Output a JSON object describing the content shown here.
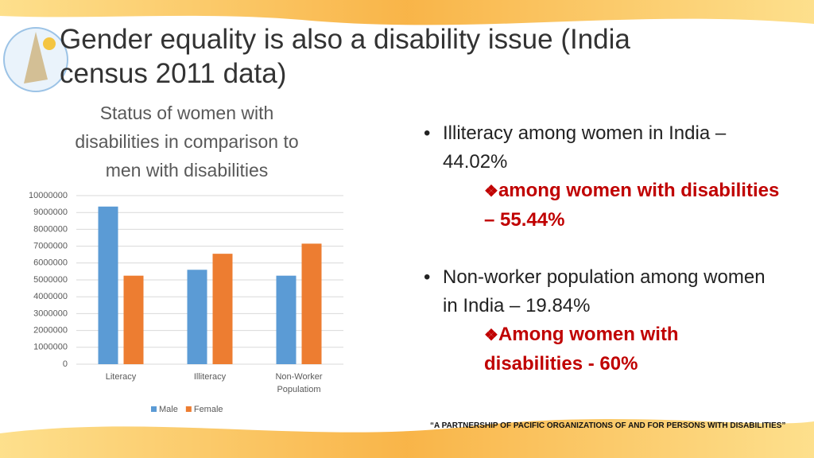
{
  "title": "Gender equality is also a disability issue (India census 2011 data)",
  "chart_data": {
    "type": "bar",
    "title": "Status of women with disabilities in comparison to men with disabilities",
    "categories": [
      "Literacy",
      "Illiteracy",
      "Non-Worker Populatiom"
    ],
    "series": [
      {
        "name": "Male",
        "color": "#5b9bd5",
        "values": [
          9350000,
          5600000,
          5250000
        ]
      },
      {
        "name": "Female",
        "color": "#ed7d31",
        "values": [
          5250000,
          6550000,
          7150000
        ]
      }
    ],
    "ylim": [
      0,
      10000000
    ],
    "yticks": [
      0,
      1000000,
      2000000,
      3000000,
      4000000,
      5000000,
      6000000,
      7000000,
      8000000,
      9000000,
      10000000
    ],
    "grid": true,
    "legend": "bottom"
  },
  "bullets": [
    {
      "text": "Illiteracy among women in India – 44.02%",
      "sub": "among women with disabilities – 55.44%"
    },
    {
      "text": "Non-worker population among women in India – 19.84%",
      "sub": "Among women with disabilities  - 60%"
    }
  ],
  "footer": "“A PARTNERSHIP OF PACIFIC ORGANIZATIONS OF AND FOR PERSONS WITH DISABILITIES”"
}
